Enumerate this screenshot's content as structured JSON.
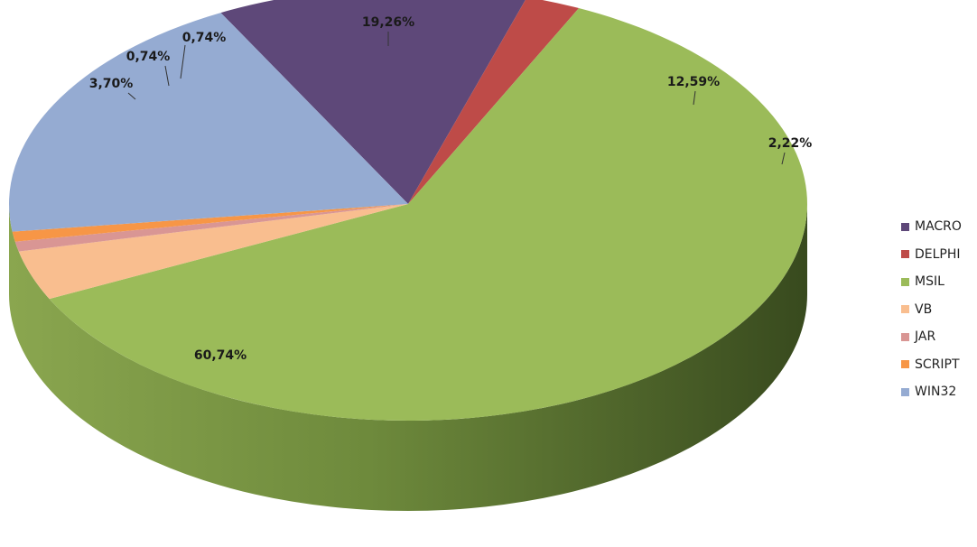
{
  "chart_data": {
    "type": "pie",
    "title": "",
    "legend_position": "right",
    "slices": [
      {
        "name": "MACRO",
        "value": 12.59,
        "label": "12,59%",
        "color": "#5E4879"
      },
      {
        "name": "DELPHI",
        "value": 2.22,
        "label": "2,22%",
        "color": "#BE4B48"
      },
      {
        "name": "MSIL",
        "value": 60.74,
        "label": "60,74%",
        "color": "#9BBB59"
      },
      {
        "name": "VB",
        "value": 3.7,
        "label": "3,70%",
        "color": "#F9BE8F"
      },
      {
        "name": "JAR",
        "value": 0.74,
        "label": "0,74%",
        "color": "#D99694"
      },
      {
        "name": "SCRIPT",
        "value": 0.74,
        "label": "0,74%",
        "color": "#F79646"
      },
      {
        "name": "WIN32",
        "value": 19.26,
        "label": "19,26%",
        "color": "#95ABD2"
      }
    ]
  }
}
